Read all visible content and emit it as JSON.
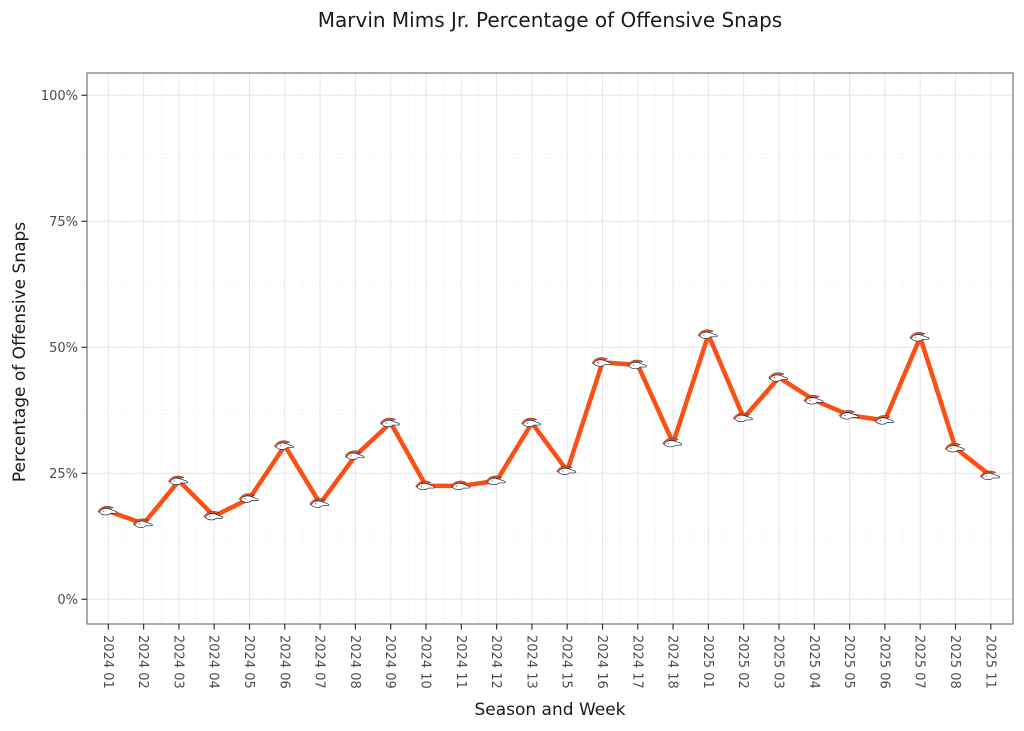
{
  "figure": {
    "background_color": "#FFFFFF"
  },
  "chart_data": {
    "type": "line",
    "title": "Marvin Mims Jr. Percentage of Offensive Snaps",
    "xlabel": "Season and Week",
    "ylabel": "Percentage of Offensive Snaps",
    "categories": [
      "2024 01",
      "2024 02",
      "2024 03",
      "2024 04",
      "2024 05",
      "2024 06",
      "2024 07",
      "2024 08",
      "2024 09",
      "2024 10",
      "2024 11",
      "2024 12",
      "2024 13",
      "2024 15",
      "2024 16",
      "2024 17",
      "2024 18",
      "2025 01",
      "2025 02",
      "2025 03",
      "2025 04",
      "2025 05",
      "2025 06",
      "2025 07",
      "2025 08",
      "2025 11"
    ],
    "values": [
      17.5,
      15,
      23.5,
      16.5,
      20,
      30.5,
      19,
      28.5,
      35,
      22.5,
      22.5,
      23.5,
      35,
      25.5,
      47,
      46.5,
      31,
      52.5,
      36,
      44,
      39.5,
      36.5,
      35.5,
      52,
      30,
      24.5
    ],
    "ylim": [
      0,
      100
    ],
    "yticks": {
      "values": [
        0,
        25,
        50,
        75,
        100
      ],
      "labels": [
        "0%",
        "25%",
        "50%",
        "75%",
        "100%"
      ]
    },
    "yminor": [
      12.5,
      37.5,
      62.5,
      87.5
    ],
    "grid": "on",
    "legend": "none",
    "marker": "denver-broncos-logo",
    "colors": {
      "line": "#FB4F14",
      "marker_mane": "#FB4F14",
      "marker_head": "#FFFFFF",
      "marker_outline": "#0A2343",
      "tick_label": "#4D4D4D",
      "title_text": "#1A1A1A",
      "grid_major": "#E6E6E6",
      "grid_minor": "#F0F0F0",
      "panel_border": "#595959",
      "tick_mark": "#333333"
    }
  }
}
